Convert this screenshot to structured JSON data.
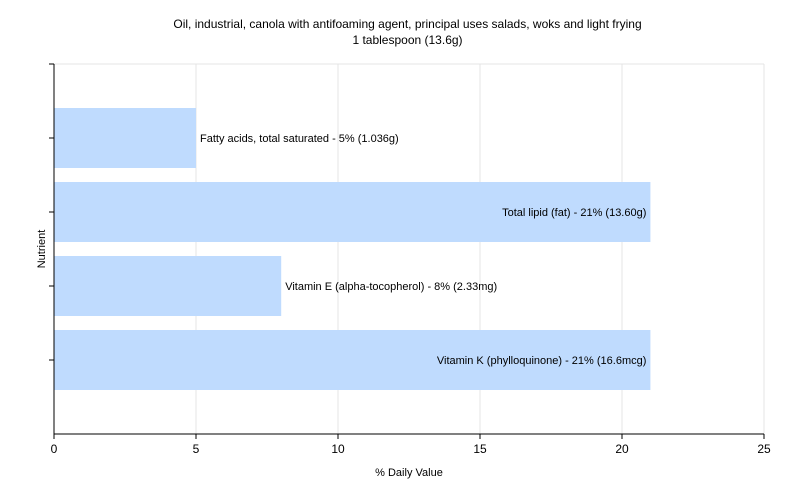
{
  "chart_data": {
    "type": "bar",
    "orientation": "horizontal",
    "title": "Oil, industrial, canola with antifoaming agent, principal uses salads, woks and light frying",
    "subtitle": "1 tablespoon (13.6g)",
    "xlabel": "% Daily Value",
    "ylabel": "Nutrient",
    "xlim": [
      0,
      25
    ],
    "xticks": [
      0,
      5,
      10,
      15,
      20,
      25
    ],
    "grid": true,
    "bar_color": "#bfdbfe",
    "categories": [
      "Fatty acids, total saturated",
      "Total lipid (fat)",
      "Vitamin E (alpha-tocopherol)",
      "Vitamin K (phylloquinone)"
    ],
    "values": [
      5,
      21,
      8,
      21
    ],
    "labels": [
      "Fatty acids, total saturated - 5% (1.036g)",
      "Total lipid (fat) - 21% (13.60g)",
      "Vitamin E (alpha-tocopherol) - 8% (2.33mg)",
      "Vitamin K (phylloquinone) - 21% (16.6mcg)"
    ]
  }
}
